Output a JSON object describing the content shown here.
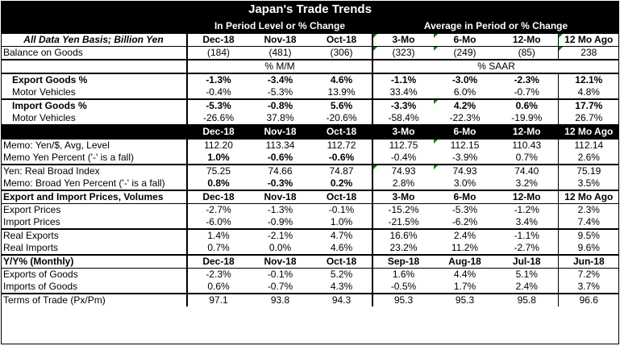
{
  "title": "Japan's Trade Trends",
  "banner": {
    "left": "In Period Level or % Change",
    "right": "Average in Period or % Change"
  },
  "header": {
    "label": "All Data Yen Basis; Billion Yen",
    "cols": [
      "Dec-18",
      "Nov-18",
      "Oct-18",
      "3-Mo",
      "6-Mo",
      "12-Mo",
      "12 Mo Ago"
    ]
  },
  "balance": {
    "label": "Balance on Goods",
    "values": [
      "(184)",
      "(481)",
      "(306)",
      "(323)",
      "(249)",
      "(85)",
      "238"
    ]
  },
  "unit_row": {
    "left": "% M/M",
    "right": "% SAAR"
  },
  "export_goods": {
    "label": "Export Goods %",
    "values": [
      "-1.3%",
      "-3.4%",
      "4.6%",
      "-1.1%",
      "-3.0%",
      "-2.3%",
      "12.1%"
    ]
  },
  "export_motor": {
    "label": "Motor Vehicles",
    "values": [
      "-0.4%",
      "-5.3%",
      "13.9%",
      "33.4%",
      "6.0%",
      "-0.7%",
      "4.8%"
    ]
  },
  "import_goods": {
    "label": "Import Goods %",
    "values": [
      "-5.3%",
      "-0.8%",
      "5.6%",
      "-3.3%",
      "4.2%",
      "0.6%",
      "17.7%"
    ]
  },
  "import_motor": {
    "label": "Motor Vehicles",
    "values": [
      "-26.6%",
      "37.8%",
      "-20.6%",
      "-58.4%",
      "-22.3%",
      "-19.9%",
      "26.7%"
    ]
  },
  "black1": {
    "cols": [
      "Dec-18",
      "Nov-18",
      "Oct-18",
      "3-Mo",
      "6-Mo",
      "12-Mo",
      "12 Mo Ago"
    ]
  },
  "yen_level": {
    "label": "Memo: Yen/$, Avg, Level",
    "values": [
      "112.20",
      "113.34",
      "112.72",
      "112.75",
      "112.15",
      "110.43",
      "112.14"
    ]
  },
  "yen_pct": {
    "label": "Memo Yen Percent ('-' is a fall)",
    "values": [
      "1.0%",
      "-0.6%",
      "-0.6%",
      "-0.4%",
      "-3.9%",
      "0.7%",
      "2.6%"
    ]
  },
  "broad_index": {
    "label": "Yen: Real Broad Index",
    "values": [
      "75.25",
      "74.66",
      "74.87",
      "74.93",
      "74.93",
      "74.40",
      "75.19"
    ]
  },
  "broad_pct": {
    "label": "Memo: Broad Yen Percent ('-' is a fall)",
    "values": [
      "0.8%",
      "-0.3%",
      "0.2%",
      "2.8%",
      "3.0%",
      "3.2%",
      "3.5%"
    ]
  },
  "prices_hdr": {
    "label": "Export and Import Prices, Volumes",
    "cols": [
      "Dec-18",
      "Nov-18",
      "Oct-18",
      "3-Mo",
      "6-Mo",
      "12-Mo",
      "12 Mo Ago"
    ]
  },
  "export_prices": {
    "label": "Export Prices",
    "values": [
      "-2.7%",
      "-1.3%",
      "-0.1%",
      "-15.2%",
      "-5.3%",
      "-1.2%",
      "2.3%"
    ]
  },
  "import_prices": {
    "label": "Import Prices",
    "values": [
      "-6.0%",
      "-0.9%",
      "1.0%",
      "-21.5%",
      "-6.2%",
      "3.4%",
      "7.4%"
    ]
  },
  "real_exports": {
    "label": "Real Exports",
    "values": [
      "1.4%",
      "-2.1%",
      "4.7%",
      "16.6%",
      "2.4%",
      "-1.1%",
      "9.5%"
    ]
  },
  "real_imports": {
    "label": "Real Imports",
    "values": [
      "0.7%",
      "0.0%",
      "4.6%",
      "23.2%",
      "11.2%",
      "-2.7%",
      "9.6%"
    ]
  },
  "yy_hdr": {
    "label": "Y/Y% (Monthly)",
    "cols": [
      "Dec-18",
      "Nov-18",
      "Oct-18",
      "Sep-18",
      "Aug-18",
      "Jul-18",
      "Jun-18"
    ]
  },
  "exports_goods_yy": {
    "label": "Exports of Goods",
    "values": [
      "-2.3%",
      "-0.1%",
      "5.2%",
      "1.6%",
      "4.4%",
      "5.1%",
      "7.2%"
    ]
  },
  "imports_goods_yy": {
    "label": "Imports of Goods",
    "values": [
      "0.6%",
      "-0.7%",
      "4.3%",
      "-0.5%",
      "1.7%",
      "2.4%",
      "3.7%"
    ]
  },
  "terms_of_trade": {
    "label": "Terms of Trade (Px/Pm)",
    "values": [
      "97.1",
      "93.8",
      "94.3",
      "95.3",
      "95.3",
      "95.8",
      "96.6"
    ]
  },
  "colors": {
    "header_bg": "#000000",
    "header_text": "#ffffff",
    "marker": "#008000"
  }
}
